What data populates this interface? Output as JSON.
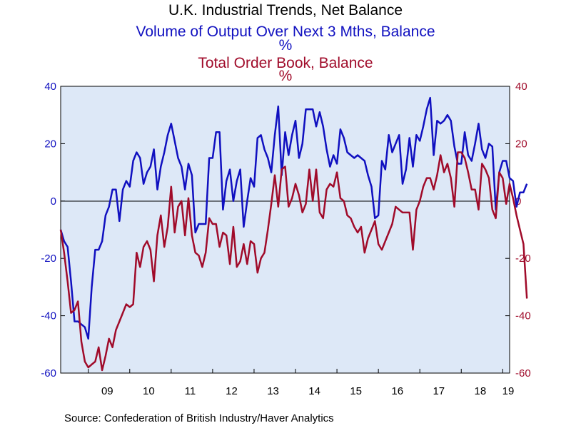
{
  "colors": {
    "background": "#ffffff",
    "plot_background": "#dde8f7",
    "series_blue": "#1010c0",
    "series_red": "#a00b2a",
    "zero_line": "#000000"
  },
  "chart_data": {
    "type": "line",
    "title": "U.K. Industrial Trends, Net Balance",
    "series_labels": [
      {
        "name": "Volume of Output Over Next 3 Mths, Balance",
        "unit": "%"
      },
      {
        "name": "Total Order Book, Balance",
        "unit": "%"
      }
    ],
    "source": "Source:  Confederation of British Industry/Haver Analytics",
    "x_tick_labels": [
      "09",
      "10",
      "11",
      "12",
      "13",
      "14",
      "15",
      "16",
      "17",
      "18",
      "19"
    ],
    "x_start": "2008-05",
    "x_end": "2019-03",
    "y_left": {
      "range": [
        -60,
        40
      ],
      "ticks": [
        "40",
        "20",
        "0",
        "-20",
        "-40",
        "-60"
      ]
    },
    "y_right": {
      "range": [
        -60,
        40
      ],
      "ticks": [
        "40",
        "20",
        "0",
        "-20",
        "-40",
        "-60"
      ]
    },
    "zero_line": true,
    "grid": false,
    "series": [
      {
        "name": "Volume of Output Over Next 3 Mths, Balance",
        "axis": "left",
        "values": [
          -10,
          -14,
          -16,
          -28,
          -42,
          -42,
          -43,
          -44,
          -48,
          -30,
          -17,
          -17,
          -14,
          -5,
          -2,
          4,
          4,
          -7,
          4,
          7,
          5,
          14,
          17,
          15,
          6,
          10,
          12,
          18,
          4,
          12,
          17,
          23,
          27,
          21,
          15,
          12,
          4,
          13,
          9,
          -11,
          -8,
          -8,
          -8,
          15,
          15,
          24,
          24,
          -3,
          7,
          11,
          0,
          7,
          11,
          -9,
          0,
          8,
          5,
          22,
          23,
          18,
          15,
          10,
          23,
          33,
          9,
          24,
          16,
          23,
          28,
          15,
          20,
          32,
          32,
          32,
          26,
          31,
          26,
          18,
          12,
          16,
          13,
          25,
          22,
          17,
          16,
          15,
          16,
          15,
          14,
          9,
          5,
          -6,
          -5,
          14,
          11,
          23,
          17,
          20,
          23,
          6,
          11,
          22,
          12,
          23,
          21,
          26,
          32,
          36,
          16,
          28,
          27,
          28,
          30,
          28,
          19,
          13,
          13,
          24,
          16,
          14,
          20,
          27,
          18,
          15,
          20,
          19,
          -3,
          10,
          14,
          14,
          8,
          7,
          -2,
          3,
          3,
          6
        ]
      },
      {
        "name": "Total Order Book, Balance",
        "axis": "right",
        "values": [
          -10,
          -18,
          -28,
          -39,
          -38,
          -35,
          -49,
          -56,
          -58,
          -57,
          -56,
          -51,
          -59,
          -54,
          -48,
          -51,
          -45,
          -42,
          -39,
          -36,
          -37,
          -36,
          -18,
          -23,
          -16,
          -14,
          -17,
          -28,
          -12,
          -5,
          -16,
          -9,
          5,
          -11,
          -2,
          0,
          -12,
          1,
          -12,
          -18,
          -19,
          -23,
          -18,
          -6,
          -8,
          -8,
          -16,
          -11,
          -12,
          -22,
          -9,
          -23,
          -21,
          -15,
          -22,
          -14,
          -15,
          -25,
          -20,
          -18,
          -10,
          -1,
          9,
          -2,
          11,
          12,
          -2,
          1,
          6,
          2,
          -4,
          -1,
          11,
          0,
          11,
          -4,
          -6,
          4,
          6,
          5,
          10,
          1,
          0,
          -5,
          -6,
          -9,
          -11,
          -9,
          -18,
          -13,
          -10,
          -7,
          -15,
          -17,
          -14,
          -11,
          -8,
          -2,
          -3,
          -4,
          -4,
          -4,
          -17,
          -3,
          0,
          5,
          8,
          8,
          4,
          9,
          16,
          10,
          13,
          8,
          -2,
          17,
          17,
          15,
          10,
          4,
          4,
          -3,
          13,
          11,
          8,
          -3,
          -6,
          10,
          8,
          -1,
          6,
          1,
          -5,
          -10,
          -15,
          -34
        ]
      }
    ]
  }
}
